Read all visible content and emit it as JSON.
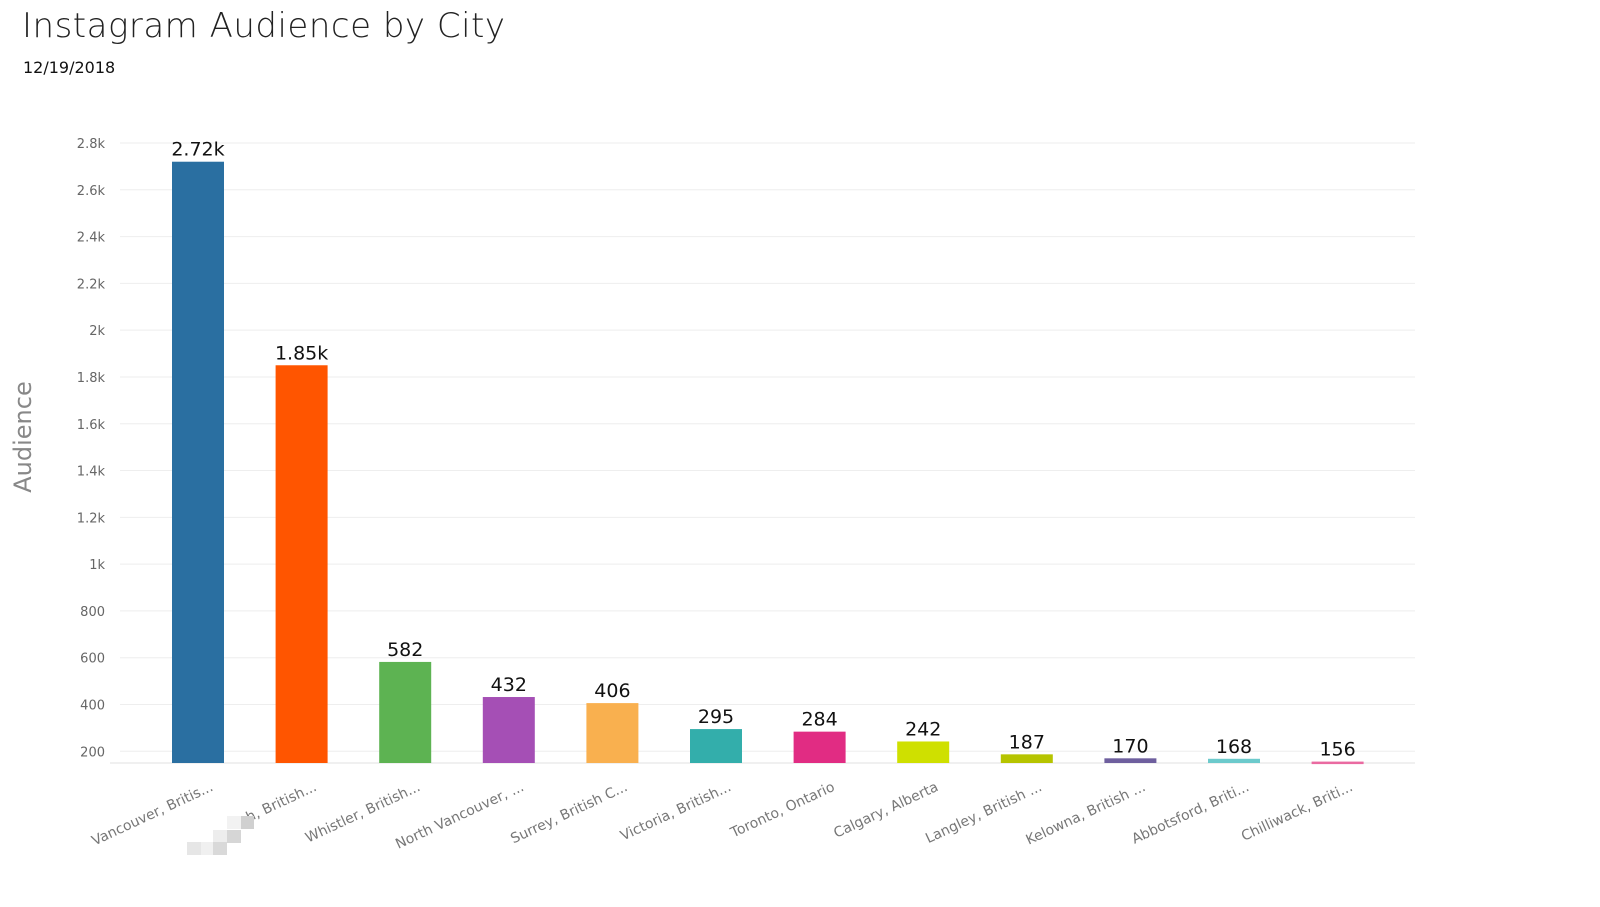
{
  "chart_data": {
    "type": "bar",
    "title": "Instagram Audience by City",
    "subtitle": "12/19/2018",
    "xlabel": "",
    "ylabel": "Audience",
    "ylim": [
      150,
      2800
    ],
    "grid": true,
    "yticks": [
      200,
      400,
      600,
      800,
      1000,
      1200,
      1400,
      1600,
      1800,
      2000,
      2200,
      2400,
      2600,
      2800
    ],
    "ytick_labels": [
      "200",
      "400",
      "600",
      "800",
      "1k",
      "1.2k",
      "1.4k",
      "1.6k",
      "1.8k",
      "2k",
      "2.2k",
      "2.4k",
      "2.6k",
      "2.8k"
    ],
    "categories": [
      "Vancouver, Britis...",
      "...h, British...",
      "Whistler, British...",
      "North Vancouver, ...",
      "Surrey, British C...",
      "Victoria, British...",
      "Toronto, Ontario",
      "Calgary, Alberta",
      "Langley, British ...",
      "Kelowna, British ...",
      "Abbotsford, Briti...",
      "Chilliwack, Briti..."
    ],
    "values": [
      2720,
      1850,
      582,
      432,
      406,
      295,
      284,
      242,
      187,
      170,
      168,
      156
    ],
    "data_labels": [
      "2.72k",
      "1.85k",
      "582",
      "432",
      "406",
      "295",
      "284",
      "242",
      "187",
      "170",
      "168",
      "156"
    ],
    "colors": [
      "#2a6fa1",
      "#ff5500",
      "#5db352",
      "#a54fb5",
      "#f9b04f",
      "#33aeab",
      "#e12c83",
      "#cfe000",
      "#b6c400",
      "#6e5f9e",
      "#6ccacc",
      "#ea6aa1"
    ]
  }
}
